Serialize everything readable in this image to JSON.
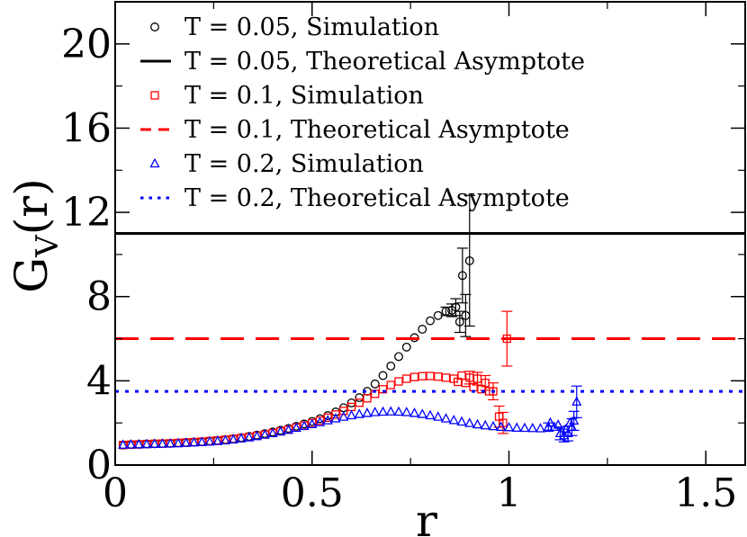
{
  "chart_data": {
    "type": "scatter",
    "xlabel": "r",
    "ylabel": "G",
    "ylabel_subscript": "V",
    "ylabel_suffix": "(r)",
    "xlim": [
      0,
      1.6
    ],
    "ylim": [
      0,
      22
    ],
    "x_ticks": [
      {
        "value": 0,
        "label": "0"
      },
      {
        "value": 0.5,
        "label": "0.5"
      },
      {
        "value": 1,
        "label": "1"
      },
      {
        "value": 1.5,
        "label": "1.5"
      }
    ],
    "y_ticks": [
      {
        "value": 0,
        "label": "0"
      },
      {
        "value": 4,
        "label": "4"
      },
      {
        "value": 8,
        "label": "8"
      },
      {
        "value": 12,
        "label": "12"
      },
      {
        "value": 16,
        "label": "16"
      },
      {
        "value": 20,
        "label": "20"
      }
    ],
    "legend_position": "top-left",
    "series": [
      {
        "name": "T = 0.05, Simulation",
        "kind": "scatter",
        "marker": "circle",
        "color": "#000000",
        "points": [
          [
            0.02,
            0.95
          ],
          [
            0.04,
            0.97
          ],
          [
            0.06,
            0.98
          ],
          [
            0.08,
            1.0
          ],
          [
            0.1,
            1.01
          ],
          [
            0.12,
            1.02
          ],
          [
            0.14,
            1.03
          ],
          [
            0.16,
            1.05
          ],
          [
            0.18,
            1.07
          ],
          [
            0.2,
            1.09
          ],
          [
            0.22,
            1.11
          ],
          [
            0.24,
            1.14
          ],
          [
            0.26,
            1.17
          ],
          [
            0.28,
            1.21
          ],
          [
            0.3,
            1.25
          ],
          [
            0.32,
            1.3
          ],
          [
            0.34,
            1.36
          ],
          [
            0.36,
            1.42
          ],
          [
            0.38,
            1.49
          ],
          [
            0.4,
            1.57
          ],
          [
            0.42,
            1.65
          ],
          [
            0.44,
            1.74
          ],
          [
            0.46,
            1.84
          ],
          [
            0.48,
            1.95
          ],
          [
            0.5,
            2.07
          ],
          [
            0.52,
            2.2
          ],
          [
            0.54,
            2.35
          ],
          [
            0.56,
            2.52
          ],
          [
            0.58,
            2.72
          ],
          [
            0.6,
            2.95
          ],
          [
            0.62,
            3.2
          ],
          [
            0.64,
            3.5
          ],
          [
            0.66,
            3.85
          ],
          [
            0.68,
            4.25
          ],
          [
            0.7,
            4.7
          ],
          [
            0.72,
            5.15
          ],
          [
            0.74,
            5.6
          ],
          [
            0.76,
            6.05
          ],
          [
            0.78,
            6.45
          ],
          [
            0.8,
            6.85
          ],
          [
            0.82,
            7.1
          ],
          [
            0.84,
            7.3
          ],
          [
            0.855,
            7.35
          ],
          [
            0.865,
            7.5
          ],
          [
            0.875,
            6.8
          ],
          [
            0.882,
            9.0
          ],
          [
            0.89,
            7.1
          ],
          [
            0.9,
            9.7
          ]
        ],
        "error": [
          [
            0.84,
            0.2
          ],
          [
            0.855,
            0.3
          ],
          [
            0.865,
            0.4
          ],
          [
            0.875,
            0.5
          ],
          [
            0.882,
            1.3
          ],
          [
            0.89,
            1.0
          ],
          [
            0.9,
            3.1
          ]
        ]
      },
      {
        "name": "T = 0.05, Theoretical Asymptote",
        "kind": "hline",
        "y": 11.0,
        "color": "#000000",
        "dash": "solid"
      },
      {
        "name": "T = 0.1, Simulation",
        "kind": "scatter",
        "marker": "square",
        "color": "#ff0000",
        "points": [
          [
            0.02,
            0.95
          ],
          [
            0.04,
            0.97
          ],
          [
            0.06,
            0.98
          ],
          [
            0.08,
            1.0
          ],
          [
            0.1,
            1.01
          ],
          [
            0.12,
            1.02
          ],
          [
            0.14,
            1.03
          ],
          [
            0.16,
            1.05
          ],
          [
            0.18,
            1.07
          ],
          [
            0.2,
            1.09
          ],
          [
            0.22,
            1.11
          ],
          [
            0.24,
            1.14
          ],
          [
            0.26,
            1.17
          ],
          [
            0.28,
            1.2
          ],
          [
            0.3,
            1.24
          ],
          [
            0.32,
            1.28
          ],
          [
            0.34,
            1.33
          ],
          [
            0.36,
            1.39
          ],
          [
            0.38,
            1.45
          ],
          [
            0.4,
            1.52
          ],
          [
            0.42,
            1.6
          ],
          [
            0.44,
            1.68
          ],
          [
            0.46,
            1.78
          ],
          [
            0.48,
            1.88
          ],
          [
            0.5,
            1.99
          ],
          [
            0.52,
            2.11
          ],
          [
            0.54,
            2.25
          ],
          [
            0.56,
            2.4
          ],
          [
            0.58,
            2.57
          ],
          [
            0.6,
            2.76
          ],
          [
            0.62,
            2.96
          ],
          [
            0.64,
            3.17
          ],
          [
            0.66,
            3.38
          ],
          [
            0.68,
            3.6
          ],
          [
            0.7,
            3.8
          ],
          [
            0.72,
            3.97
          ],
          [
            0.74,
            4.1
          ],
          [
            0.76,
            4.18
          ],
          [
            0.78,
            4.22
          ],
          [
            0.8,
            4.23
          ],
          [
            0.82,
            4.2
          ],
          [
            0.84,
            4.15
          ],
          [
            0.86,
            4.1
          ],
          [
            0.87,
            3.95
          ],
          [
            0.88,
            4.25
          ],
          [
            0.89,
            3.9
          ],
          [
            0.9,
            4.15
          ],
          [
            0.91,
            3.7
          ],
          [
            0.92,
            4.1
          ],
          [
            0.93,
            3.6
          ],
          [
            0.94,
            3.9
          ],
          [
            0.95,
            3.5
          ],
          [
            0.96,
            3.5
          ],
          [
            0.975,
            2.3
          ],
          [
            0.985,
            2.0
          ],
          [
            0.995,
            6.0
          ]
        ],
        "error": [
          [
            0.9,
            0.3
          ],
          [
            0.92,
            0.3
          ],
          [
            0.94,
            0.35
          ],
          [
            0.96,
            0.4
          ],
          [
            0.975,
            0.5
          ],
          [
            0.985,
            0.5
          ],
          [
            0.995,
            1.3
          ]
        ]
      },
      {
        "name": "T = 0.1, Theoretical Asymptote",
        "kind": "hline",
        "y": 6.0,
        "color": "#ff0000",
        "dash": "dashed"
      },
      {
        "name": "T = 0.2, Simulation",
        "kind": "scatter",
        "marker": "triangle",
        "color": "#0000ff",
        "points": [
          [
            0.02,
            0.95
          ],
          [
            0.04,
            0.96
          ],
          [
            0.06,
            0.97
          ],
          [
            0.08,
            0.98
          ],
          [
            0.1,
            0.99
          ],
          [
            0.12,
            1.0
          ],
          [
            0.14,
            1.01
          ],
          [
            0.16,
            1.02
          ],
          [
            0.18,
            1.04
          ],
          [
            0.2,
            1.06
          ],
          [
            0.22,
            1.08
          ],
          [
            0.24,
            1.1
          ],
          [
            0.26,
            1.13
          ],
          [
            0.28,
            1.16
          ],
          [
            0.3,
            1.2
          ],
          [
            0.32,
            1.25
          ],
          [
            0.34,
            1.3
          ],
          [
            0.36,
            1.36
          ],
          [
            0.38,
            1.43
          ],
          [
            0.4,
            1.5
          ],
          [
            0.42,
            1.58
          ],
          [
            0.44,
            1.66
          ],
          [
            0.46,
            1.75
          ],
          [
            0.48,
            1.84
          ],
          [
            0.5,
            1.93
          ],
          [
            0.52,
            2.02
          ],
          [
            0.54,
            2.11
          ],
          [
            0.56,
            2.2
          ],
          [
            0.58,
            2.28
          ],
          [
            0.6,
            2.35
          ],
          [
            0.62,
            2.41
          ],
          [
            0.64,
            2.46
          ],
          [
            0.66,
            2.5
          ],
          [
            0.68,
            2.52
          ],
          [
            0.7,
            2.53
          ],
          [
            0.72,
            2.52
          ],
          [
            0.74,
            2.5
          ],
          [
            0.76,
            2.46
          ],
          [
            0.78,
            2.41
          ],
          [
            0.8,
            2.35
          ],
          [
            0.82,
            2.28
          ],
          [
            0.84,
            2.2
          ],
          [
            0.86,
            2.12
          ],
          [
            0.88,
            2.05
          ],
          [
            0.9,
            1.98
          ],
          [
            0.92,
            1.92
          ],
          [
            0.94,
            1.87
          ],
          [
            0.96,
            1.83
          ],
          [
            0.98,
            1.8
          ],
          [
            1.0,
            1.78
          ],
          [
            1.02,
            1.76
          ],
          [
            1.04,
            1.75
          ],
          [
            1.06,
            1.74
          ],
          [
            1.08,
            1.73
          ],
          [
            1.1,
            1.8
          ],
          [
            1.105,
            2.0
          ],
          [
            1.115,
            1.8
          ],
          [
            1.125,
            1.9
          ],
          [
            1.13,
            1.5
          ],
          [
            1.14,
            1.4
          ],
          [
            1.145,
            1.7
          ],
          [
            1.15,
            1.5
          ],
          [
            1.155,
            2.0
          ],
          [
            1.16,
            1.8
          ],
          [
            1.165,
            2.1
          ],
          [
            1.172,
            3.0
          ]
        ],
        "error": [
          [
            1.1,
            0.2
          ],
          [
            1.13,
            0.3
          ],
          [
            1.14,
            0.3
          ],
          [
            1.15,
            0.35
          ],
          [
            1.16,
            0.4
          ],
          [
            1.165,
            0.45
          ],
          [
            1.172,
            0.75
          ]
        ]
      },
      {
        "name": "T = 0.2, Theoretical Asymptote",
        "kind": "hline",
        "y": 3.5,
        "color": "#0000ff",
        "dash": "dotted"
      }
    ]
  }
}
